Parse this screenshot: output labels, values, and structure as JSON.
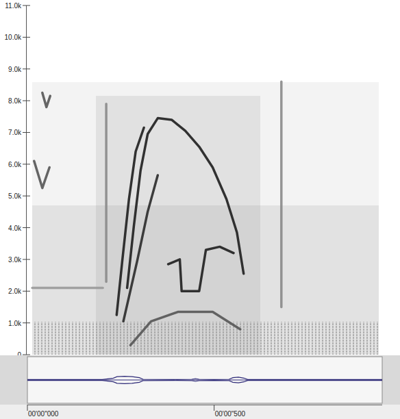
{
  "chart_data": [
    {
      "type": "line",
      "xlim": [
        0,
        950
      ],
      "ylim": [
        0,
        11000
      ],
      "yticks": [
        0,
        {
          "value": 1000,
          "label": "1.0k"
        },
        {
          "value": 2000,
          "label": "2.0k"
        },
        {
          "value": 3000,
          "label": "3.0k"
        },
        {
          "value": 4000,
          "label": "4.0k"
        },
        {
          "value": 5000,
          "label": "5.0k"
        },
        {
          "value": 6000,
          "label": "6.0k"
        },
        {
          "value": 7000,
          "label": "7.0k"
        },
        {
          "value": 8000,
          "label": "8.0k"
        },
        {
          "value": 9000,
          "label": "9.0k"
        },
        {
          "value": 10000,
          "label": "10.0k"
        },
        {
          "value": 11000,
          "label": "11.0k"
        }
      ],
      "tick_labels": "y",
      "series": [
        {
          "color": "#1e1e1e",
          "x": [
            267,
            285,
            303,
            322,
            349,
            386,
            423,
            460,
            496,
            533,
            561,
            579
          ],
          "values": [
            2100,
            4050,
            5800,
            6950,
            7450,
            7400,
            7050,
            6550,
            5900,
            4900,
            3850,
            2550
          ]
        },
        {
          "color": "#1e1e1e",
          "x": [
            239,
            254,
            272,
            290,
            312
          ],
          "values": [
            1250,
            2950,
            4900,
            6400,
            7150
          ]
        },
        {
          "color": "#2a2a2a",
          "x": [
            257,
            294,
            322,
            349
          ],
          "values": [
            1050,
            2950,
            4500,
            5650
          ]
        },
        {
          "color": "#1e1e1e",
          "x": [
            377,
            408,
            413,
            460,
            478,
            515,
            552
          ],
          "values": [
            2850,
            3000,
            2000,
            2000,
            3300,
            3400,
            3200
          ]
        },
        {
          "color": "#555555",
          "x": [
            276,
            331,
            404,
            496,
            570
          ],
          "values": [
            300,
            1050,
            1350,
            1350,
            800
          ]
        },
        {
          "color": "#555555",
          "x": [
            18,
            40,
            59
          ],
          "values": [
            6100,
            5250,
            5900
          ]
        },
        {
          "color": "#555555",
          "x": [
            40,
            51,
            61
          ],
          "values": [
            8250,
            7800,
            8150
          ]
        },
        {
          "color": "#8a8a8a",
          "x": [
            211,
            211
          ],
          "values": [
            2300,
            7900
          ]
        },
        {
          "color": "#8a8a8a",
          "x": [
            680,
            680
          ],
          "values": [
            1500,
            8600
          ]
        },
        {
          "color": "#9a9a9a",
          "x": [
            13,
            202
          ],
          "values": [
            2100,
            2100
          ]
        }
      ]
    },
    {
      "type": "line",
      "xlim": [
        0,
        950
      ],
      "ylim": [
        -1,
        1
      ],
      "xticks": [
        {
          "value": 0,
          "label": "00'00\"000"
        },
        {
          "value": 500,
          "label": "00'00\"500"
        }
      ],
      "tick_labels": "x",
      "series": [
        {
          "color": "#2e2a78",
          "x": [
            0,
            100,
            200,
            230,
            240,
            260,
            280,
            300,
            310,
            400,
            440,
            450,
            460,
            500,
            540,
            550,
            565,
            580,
            590,
            700,
            800,
            950
          ],
          "values": [
            0.02,
            0.02,
            0.02,
            0.08,
            0.14,
            0.16,
            0.14,
            0.1,
            0.03,
            0.02,
            0.03,
            0.06,
            0.03,
            0.02,
            0.03,
            0.1,
            0.12,
            0.08,
            0.02,
            0.02,
            0.02,
            0.02
          ]
        }
      ]
    }
  ]
}
